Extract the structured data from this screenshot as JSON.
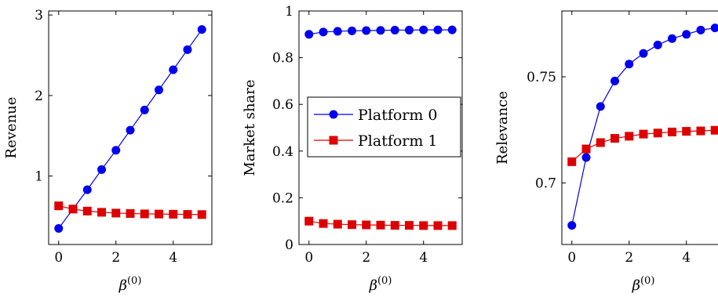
{
  "colors": {
    "platform0": "#0000ee",
    "platform1": "#dd0000"
  },
  "chart_data": [
    {
      "type": "line",
      "xlabel": "β",
      "xlabel_sup": "(0)",
      "ylabel": "Revenue",
      "xlim": [
        -0.35,
        5.35
      ],
      "ylim": [
        0.15,
        3.05
      ],
      "xticks": [
        0,
        2,
        4
      ],
      "xtick_labels": [
        "0",
        "2",
        "4"
      ],
      "yticks": [
        1,
        2,
        3
      ],
      "ytick_labels": [
        "1",
        "2",
        "3"
      ],
      "x": [
        0,
        0.5,
        1,
        1.5,
        2,
        2.5,
        3,
        3.5,
        4,
        4.5,
        5
      ],
      "series": [
        {
          "name": "Platform 0",
          "marker": "circle",
          "color": "#0000ee",
          "values": [
            0.35,
            0.59,
            0.83,
            1.08,
            1.32,
            1.57,
            1.82,
            2.07,
            2.32,
            2.57,
            2.82
          ]
        },
        {
          "name": "Platform 1",
          "marker": "square",
          "color": "#dd0000",
          "values": [
            0.63,
            0.59,
            0.565,
            0.55,
            0.54,
            0.535,
            0.53,
            0.528,
            0.526,
            0.524,
            0.522
          ]
        }
      ]
    },
    {
      "type": "line",
      "xlabel": "β",
      "xlabel_sup": "(0)",
      "ylabel": "Market share",
      "xlim": [
        -0.35,
        5.35
      ],
      "ylim": [
        0,
        1
      ],
      "xticks": [
        0,
        2,
        4
      ],
      "xtick_labels": [
        "0",
        "2",
        "4"
      ],
      "yticks": [
        0,
        0.2,
        0.4,
        0.6,
        0.8,
        1
      ],
      "ytick_labels": [
        "0",
        "0.2",
        "0.4",
        "0.6",
        "0.8",
        "1"
      ],
      "legend": {
        "position": "center-left",
        "entries": [
          "Platform 0",
          "Platform 1"
        ]
      },
      "x": [
        0,
        0.5,
        1,
        1.5,
        2,
        2.5,
        3,
        3.5,
        4,
        4.5,
        5
      ],
      "series": [
        {
          "name": "Platform 0",
          "marker": "circle",
          "color": "#0000ee",
          "values": [
            0.9,
            0.91,
            0.913,
            0.915,
            0.916,
            0.917,
            0.918,
            0.918,
            0.919,
            0.919,
            0.919
          ]
        },
        {
          "name": "Platform 1",
          "marker": "square",
          "color": "#dd0000",
          "values": [
            0.1,
            0.09,
            0.087,
            0.085,
            0.084,
            0.083,
            0.082,
            0.082,
            0.081,
            0.081,
            0.081
          ]
        }
      ]
    },
    {
      "type": "line",
      "xlabel": "β",
      "xlabel_sup": "(0)",
      "ylabel": "Relevance",
      "xlim": [
        -0.35,
        5.35
      ],
      "ylim": [
        0.671,
        0.781
      ],
      "xticks": [
        0,
        2,
        4
      ],
      "xtick_labels": [
        "0",
        "2",
        "4"
      ],
      "yticks": [
        0.7,
        0.75
      ],
      "ytick_labels": [
        "0.7",
        "0.75"
      ],
      "x": [
        0,
        0.5,
        1,
        1.5,
        2,
        2.5,
        3,
        3.5,
        4,
        4.5,
        5
      ],
      "series": [
        {
          "name": "Platform 0",
          "marker": "circle",
          "color": "#0000ee",
          "values": [
            0.68,
            0.712,
            0.736,
            0.748,
            0.756,
            0.761,
            0.765,
            0.768,
            0.77,
            0.772,
            0.773
          ]
        },
        {
          "name": "Platform 1",
          "marker": "square",
          "color": "#dd0000",
          "values": [
            0.71,
            0.716,
            0.719,
            0.721,
            0.722,
            0.723,
            0.7235,
            0.724,
            0.7243,
            0.7245,
            0.7248
          ]
        }
      ]
    }
  ]
}
